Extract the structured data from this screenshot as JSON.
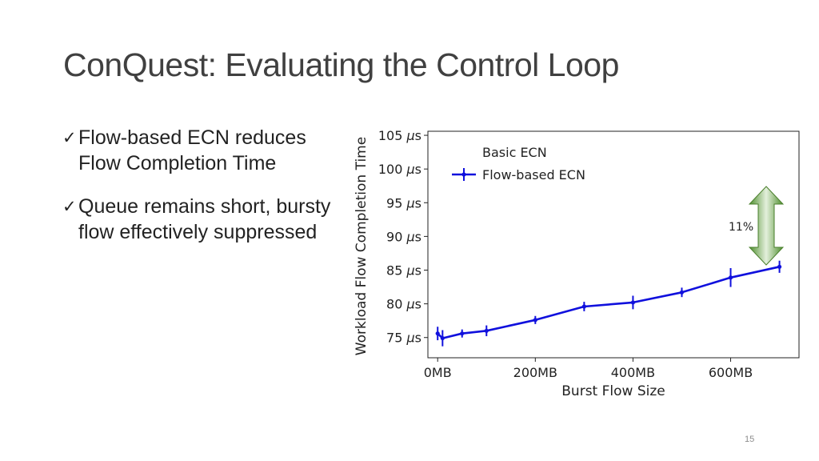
{
  "slide": {
    "title": "ConQuest: Evaluating the Control Loop",
    "bullets": [
      "Flow-based ECN reduces Flow Completion Time",
      "Queue remains short, bursty flow effectively suppressed"
    ],
    "check_glyph": "✓",
    "page_number": "15"
  },
  "annotation": {
    "label": "11%",
    "color": "#5c9c3a"
  },
  "chart_data": {
    "type": "line",
    "xlabel": "Burst Flow Size",
    "ylabel": "Workload Flow Completion Time",
    "x_unit": "MB",
    "y_unit": "μs",
    "xlim": [
      -20,
      740
    ],
    "ylim": [
      72,
      105.6
    ],
    "xticks": [
      0,
      200,
      400,
      600
    ],
    "xtick_labels": [
      "0MB",
      "200MB",
      "400MB",
      "600MB"
    ],
    "yticks": [
      75,
      80,
      85,
      90,
      95,
      100,
      105
    ],
    "legend_position": "top-left",
    "series": [
      {
        "name": "Basic ECN",
        "color": "#ffffff",
        "x": [],
        "y": [],
        "err": []
      },
      {
        "name": "Flow-based ECN",
        "color": "#1010dd",
        "x": [
          0,
          10,
          50,
          100,
          200,
          300,
          400,
          500,
          600,
          700
        ],
        "y": [
          75.6,
          74.9,
          75.6,
          76.0,
          77.6,
          79.6,
          80.2,
          81.7,
          83.9,
          85.5
        ],
        "err": [
          1.0,
          1.2,
          0.6,
          0.8,
          0.6,
          0.7,
          1.0,
          0.7,
          1.4,
          0.9
        ]
      }
    ]
  }
}
